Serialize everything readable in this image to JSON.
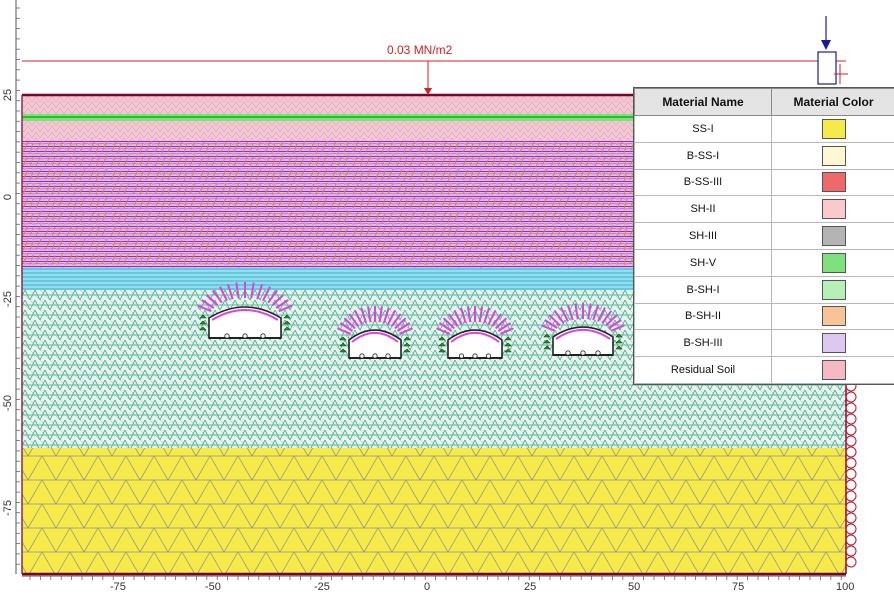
{
  "load": {
    "label": "0.03 MN/m2"
  },
  "axes": {
    "x_ticks": [
      "-75",
      "-50",
      "-25",
      "0",
      "25",
      "50",
      "75",
      "100"
    ],
    "y_ticks": [
      "25",
      "0",
      "-25",
      "-50",
      "-75"
    ]
  },
  "legend": {
    "header_name": "Material Name",
    "header_color": "Material Color",
    "rows": [
      {
        "name": "SS-I",
        "color": "#f5ea4a"
      },
      {
        "name": "B-SS-I",
        "color": "#fdf7d2"
      },
      {
        "name": "B-SS-III",
        "color": "#ee6a6a"
      },
      {
        "name": "SH-II",
        "color": "#f9c9cc"
      },
      {
        "name": "SH-III",
        "color": "#b4b4b4"
      },
      {
        "name": "SH-V",
        "color": "#7fe07f"
      },
      {
        "name": "B-SH-I",
        "color": "#b6f0b6"
      },
      {
        "name": "B-SH-II",
        "color": "#f8c496"
      },
      {
        "name": "B-SH-III",
        "color": "#dcc9f2"
      },
      {
        "name": "Residual Soil",
        "color": "#f6b9c4"
      }
    ]
  },
  "colors": {
    "sandstone": "#f5ea4a",
    "residual": "#f6b9c4",
    "shale_band": "#c77cd8",
    "shale_line": "#8a2be2",
    "cyan": "#58c7dd",
    "mesh_green": "#3dbf8f",
    "green_band": "#7fe07f",
    "bolt": "#e040e0",
    "load": "#d42020",
    "boundary": "#7a0030"
  }
}
